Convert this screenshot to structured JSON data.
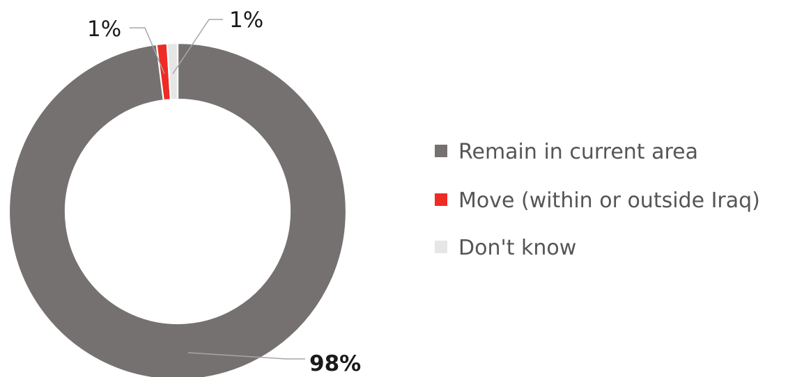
{
  "chart_data": {
    "type": "pie",
    "donut": true,
    "title": "",
    "legend_position": "right",
    "slices": [
      {
        "name": "Remain in current area",
        "value": 98,
        "label": "98%",
        "color": "#767171",
        "label_bold": true
      },
      {
        "name": "Move (within or outside Iraq)",
        "value": 1,
        "label": "1%",
        "color": "#ee2b24",
        "label_bold": false
      },
      {
        "name": "Don't know",
        "value": 1,
        "label": "1%",
        "color": "#e7e6e6",
        "label_bold": false
      }
    ]
  }
}
